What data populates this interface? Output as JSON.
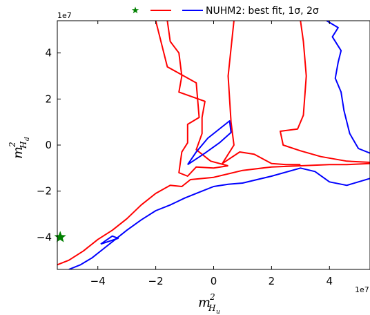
{
  "chart_data": {
    "type": "line",
    "title": "",
    "xlabel": "m²_Hu",
    "ylabel": "m²_Hd",
    "x_multiplier": "1e7",
    "y_multiplier": "1e7",
    "xlim": [
      -5.4,
      5.4
    ],
    "ylim": [
      -5.4,
      5.4
    ],
    "x_ticks": [
      -4,
      -2,
      0,
      2,
      4
    ],
    "y_ticks": [
      -4,
      -2,
      0,
      2,
      4
    ],
    "x_tick_labels": [
      "−4",
      "−2",
      "0",
      "2",
      "4"
    ],
    "y_tick_labels": [
      "−4",
      "−2",
      "0",
      "2",
      "4"
    ],
    "grid": false,
    "legend": {
      "placement": "top-center",
      "text": "NUHM2: best fit, 1σ, 2σ"
    },
    "series": [
      {
        "kind": "best-fit-point",
        "color": "#008000",
        "marker": "star",
        "points": [
          [
            -5.3,
            -4.0
          ]
        ]
      },
      {
        "kind": "1-sigma contour",
        "color": "#ff0000",
        "segments": [
          [
            [
              -5.4,
              -5.2
            ],
            [
              -5.0,
              -5.0
            ],
            [
              -4.5,
              -4.6
            ],
            [
              -4.0,
              -4.1
            ],
            [
              -3.5,
              -3.7
            ],
            [
              -3.0,
              -3.2
            ],
            [
              -2.5,
              -2.6
            ],
            [
              -2.0,
              -2.1
            ],
            [
              -1.5,
              -1.75
            ],
            [
              -1.1,
              -1.8
            ],
            [
              -0.8,
              -1.5
            ],
            [
              0.0,
              -1.4
            ],
            [
              1.0,
              -1.1
            ],
            [
              2.0,
              -0.95
            ],
            [
              3.0,
              -0.9
            ],
            [
              4.0,
              -0.85
            ],
            [
              4.6,
              -0.85
            ],
            [
              5.4,
              -0.8
            ]
          ],
          [
            [
              5.4,
              -0.75
            ],
            [
              4.6,
              -0.7
            ],
            [
              3.7,
              -0.5
            ],
            [
              3.0,
              -0.25
            ],
            [
              2.4,
              0.0
            ],
            [
              2.3,
              0.6
            ],
            [
              2.9,
              0.7
            ],
            [
              3.1,
              1.3
            ],
            [
              3.2,
              3.0
            ],
            [
              3.1,
              4.5
            ],
            [
              3.0,
              5.4
            ]
          ],
          [
            [
              0.7,
              5.4
            ],
            [
              0.5,
              3.0
            ],
            [
              0.6,
              1.0
            ],
            [
              0.7,
              0.0
            ],
            [
              0.3,
              -0.8
            ],
            [
              0.9,
              -0.3
            ],
            [
              1.4,
              -0.4
            ],
            [
              2.0,
              -0.8
            ],
            [
              2.5,
              -0.85
            ],
            [
              3.0,
              -0.85
            ]
          ],
          [
            [
              0.5,
              -0.9
            ],
            [
              -0.1,
              -0.7
            ],
            [
              -0.6,
              -0.2
            ],
            [
              -0.4,
              0.5
            ],
            [
              -0.4,
              1.2
            ],
            [
              -0.3,
              1.9
            ],
            [
              -1.2,
              2.3
            ],
            [
              -1.1,
              3.0
            ],
            [
              -1.2,
              4.0
            ],
            [
              -1.5,
              4.5
            ],
            [
              -1.6,
              5.4
            ]
          ],
          [
            [
              -2.0,
              5.4
            ],
            [
              -1.6,
              3.4
            ],
            [
              -0.6,
              2.7
            ],
            [
              -0.5,
              1.2
            ],
            [
              -0.9,
              0.9
            ],
            [
              -0.9,
              0.1
            ],
            [
              -1.1,
              -0.3
            ],
            [
              -1.2,
              -1.2
            ],
            [
              -0.9,
              -1.35
            ],
            [
              -0.6,
              -0.95
            ],
            [
              0.0,
              -1.0
            ],
            [
              0.5,
              -0.9
            ]
          ]
        ]
      },
      {
        "kind": "2-sigma contour",
        "color": "#0000ff",
        "segments": [
          [
            [
              -5.0,
              -5.4
            ],
            [
              -4.6,
              -5.2
            ],
            [
              -4.2,
              -4.9
            ],
            [
              -3.8,
              -4.5
            ],
            [
              -3.4,
              -4.1
            ],
            [
              -3.0,
              -3.7
            ],
            [
              -2.5,
              -3.25
            ],
            [
              -2.0,
              -2.85
            ],
            [
              -1.5,
              -2.6
            ],
            [
              -1.0,
              -2.3
            ],
            [
              -0.5,
              -2.05
            ],
            [
              0.0,
              -1.8
            ],
            [
              0.5,
              -1.7
            ],
            [
              1.0,
              -1.65
            ],
            [
              2.0,
              -1.35
            ],
            [
              3.0,
              -1.0
            ],
            [
              3.5,
              -1.15
            ],
            [
              4.0,
              -1.6
            ],
            [
              4.6,
              -1.75
            ],
            [
              5.4,
              -1.45
            ]
          ],
          [
            [
              5.4,
              -0.35
            ],
            [
              5.0,
              -0.15
            ],
            [
              4.7,
              0.5
            ],
            [
              4.5,
              1.5
            ],
            [
              4.4,
              2.3
            ],
            [
              4.2,
              2.9
            ],
            [
              4.3,
              3.6
            ],
            [
              4.4,
              4.1
            ],
            [
              4.1,
              4.7
            ],
            [
              4.3,
              5.1
            ],
            [
              3.9,
              5.4
            ]
          ],
          [
            [
              -0.9,
              -0.85
            ],
            [
              -0.6,
              -0.3
            ],
            [
              -0.2,
              0.3
            ],
            [
              0.1,
              0.6
            ],
            [
              0.55,
              1.05
            ],
            [
              0.6,
              0.55
            ],
            [
              0.2,
              0.1
            ],
            [
              -0.3,
              -0.35
            ],
            [
              -0.9,
              -0.85
            ]
          ],
          [
            [
              -3.9,
              -4.3
            ],
            [
              -3.3,
              -4.05
            ],
            [
              -3.5,
              -3.95
            ],
            [
              -3.9,
              -4.3
            ]
          ]
        ]
      }
    ]
  }
}
